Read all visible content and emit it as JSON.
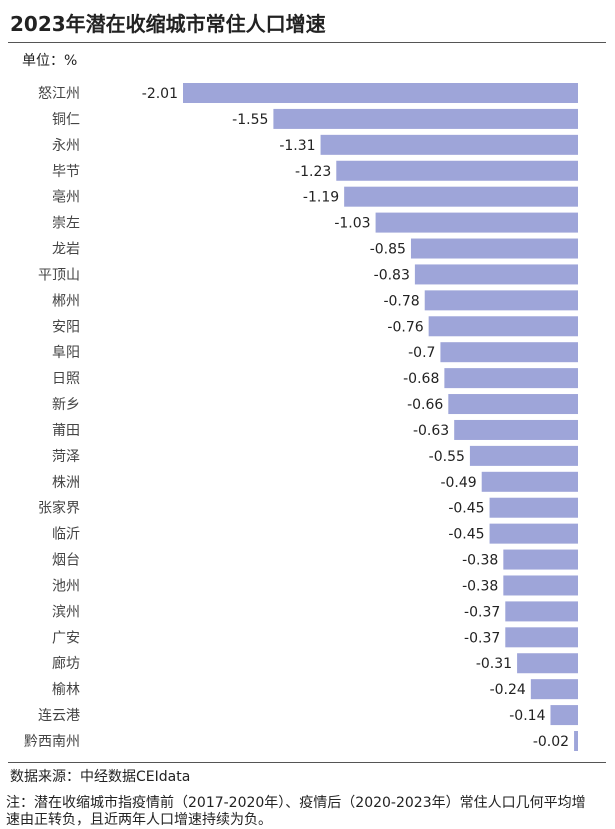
{
  "chart_data": {
    "type": "bar",
    "orientation": "horizontal",
    "title": "2023年潜在收缩城市常住人口增速",
    "unit": "单位：%",
    "categories": [
      "怒江州",
      "铜仁",
      "永州",
      "毕节",
      "亳州",
      "崇左",
      "龙岩",
      "平顶山",
      "郴州",
      "安阳",
      "阜阳",
      "日照",
      "新乡",
      "莆田",
      "菏泽",
      "株洲",
      "张家界",
      "临沂",
      "烟台",
      "池州",
      "滨州",
      "广安",
      "廊坊",
      "榆林",
      "连云港",
      "黔西南州"
    ],
    "values": [
      -2.01,
      -1.55,
      -1.31,
      -1.23,
      -1.19,
      -1.03,
      -0.85,
      -0.83,
      -0.78,
      -0.76,
      -0.7,
      -0.68,
      -0.66,
      -0.63,
      -0.55,
      -0.49,
      -0.45,
      -0.45,
      -0.38,
      -0.38,
      -0.37,
      -0.37,
      -0.31,
      -0.24,
      -0.14,
      -0.02
    ],
    "color": "#9ea5d9",
    "source": "数据来源：中经数据CEIdata",
    "note": "注：潜在收缩城市指疫情前（2017-2020年）、疫情后（2020-2023年）常住人口几何平均增速由正转负，且近两年人口增速持续为负。"
  }
}
